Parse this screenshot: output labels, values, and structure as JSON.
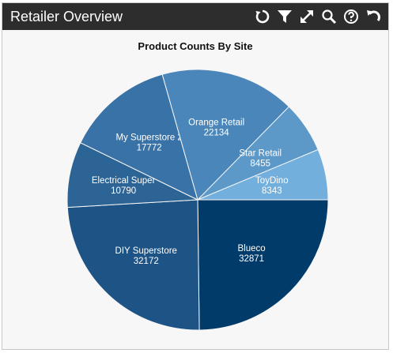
{
  "header": {
    "title": "Retailer Overview",
    "toolbar": [
      {
        "icon": "refresh-icon"
      },
      {
        "icon": "filter-icon"
      },
      {
        "icon": "expand-icon"
      },
      {
        "icon": "search-icon"
      },
      {
        "icon": "help-icon"
      },
      {
        "icon": "undo-icon"
      }
    ]
  },
  "chart_data": {
    "type": "pie",
    "title": "Product Counts By Site",
    "slices": [
      {
        "label": "Blueco",
        "value": 32871,
        "color": "#003b6a"
      },
      {
        "label": "DIY Superstore",
        "value": 32172,
        "color": "#1e5385"
      },
      {
        "label": "Electrical Super",
        "value": 10790,
        "color": "#2d6496"
      },
      {
        "label": "My Superstore 2",
        "value": 17772,
        "color": "#3872a6"
      },
      {
        "label": "Orange Retail",
        "value": 22134,
        "color": "#4a86b9"
      },
      {
        "label": "Star Retail",
        "value": 8455,
        "color": "#5c99c9"
      },
      {
        "label": "ToyDino",
        "value": 8343,
        "color": "#72afdc"
      }
    ]
  }
}
